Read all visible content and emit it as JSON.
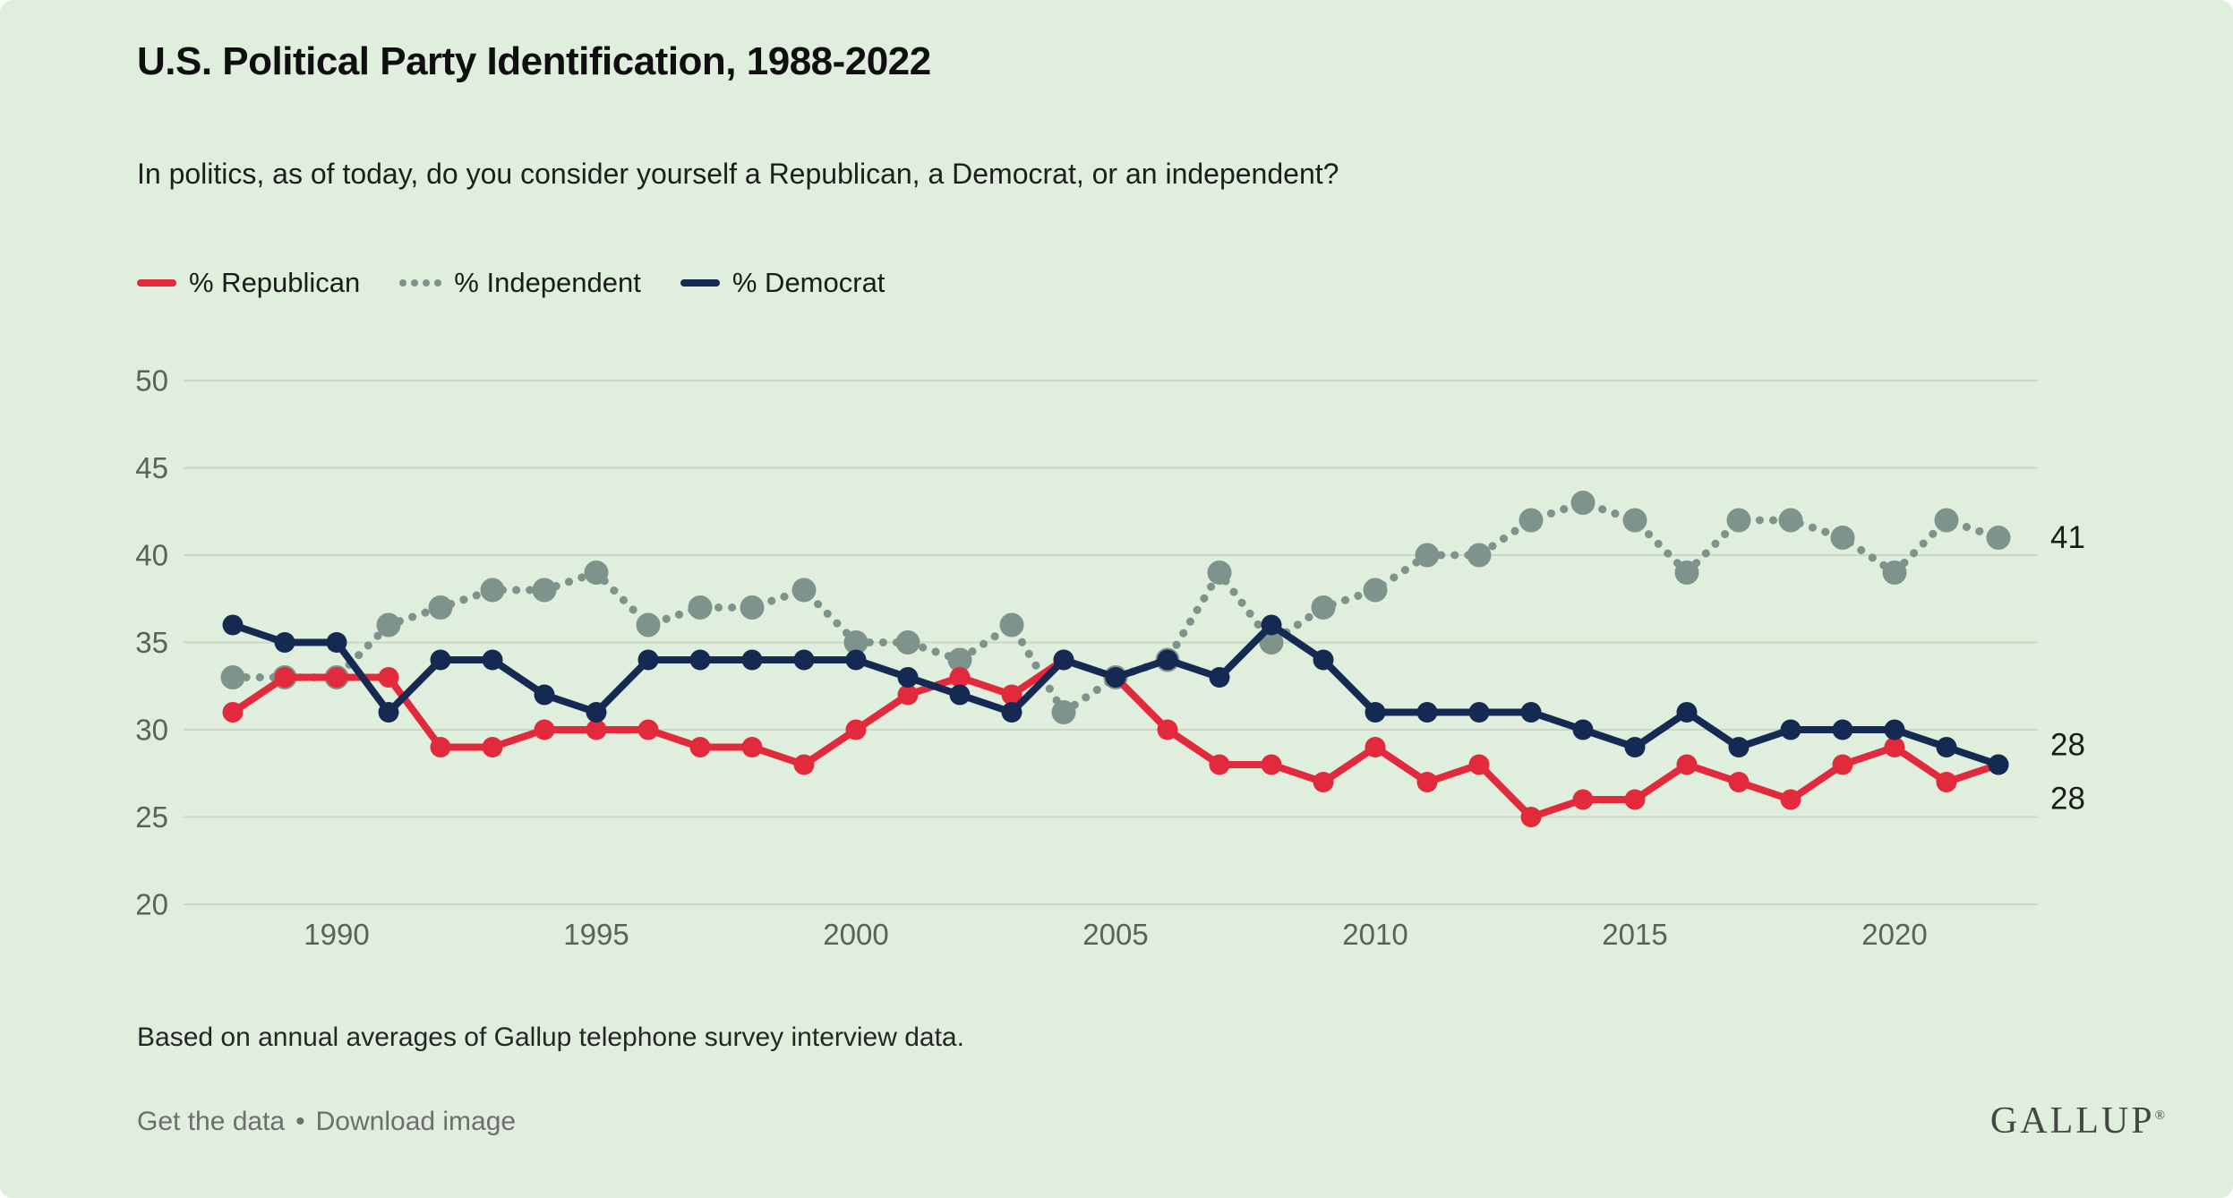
{
  "card": {
    "title": "U.S. Political Party Identification, 1988-2022",
    "subtitle": "In politics, as of today, do you consider yourself a Republican, a Democrat, or an independent?"
  },
  "legend": [
    {
      "label": "% Republican",
      "key": "republican",
      "style": "solid"
    },
    {
      "label": "% Independent",
      "key": "independent",
      "style": "dotted"
    },
    {
      "label": "% Democrat",
      "key": "democrat",
      "style": "solid"
    }
  ],
  "colors": {
    "republican": "#e3293c",
    "independent": "#7d938c",
    "democrat": "#152a52",
    "background": "#dfeedd",
    "grid": "#c9d7c4",
    "tick_text": "#5c615c",
    "end_label": "#1b1b1b"
  },
  "chart_data": {
    "type": "line",
    "title": "U.S. Political Party Identification, 1988-2022",
    "x": [
      1988,
      1989,
      1990,
      1991,
      1992,
      1993,
      1994,
      1995,
      1996,
      1997,
      1998,
      1999,
      2000,
      2001,
      2002,
      2003,
      2004,
      2005,
      2006,
      2007,
      2008,
      2009,
      2010,
      2011,
      2012,
      2013,
      2014,
      2015,
      2016,
      2017,
      2018,
      2019,
      2020,
      2021,
      2022
    ],
    "series": [
      {
        "name": "% Republican",
        "key": "republican",
        "style": "solid",
        "values": [
          31,
          33,
          33,
          33,
          29,
          29,
          30,
          30,
          30,
          29,
          29,
          28,
          30,
          32,
          33,
          32,
          34,
          33,
          30,
          28,
          28,
          27,
          29,
          27,
          28,
          25,
          26,
          26,
          28,
          27,
          26,
          28,
          29,
          27,
          28
        ]
      },
      {
        "name": "% Independent",
        "key": "independent",
        "style": "dotted",
        "values": [
          33,
          33,
          33,
          36,
          37,
          38,
          38,
          39,
          36,
          37,
          37,
          38,
          35,
          35,
          34,
          36,
          31,
          33,
          34,
          39,
          35,
          37,
          38,
          40,
          40,
          42,
          43,
          42,
          39,
          42,
          42,
          41,
          39,
          42,
          41
        ]
      },
      {
        "name": "% Democrat",
        "key": "democrat",
        "style": "solid",
        "values": [
          36,
          35,
          35,
          31,
          34,
          34,
          32,
          31,
          34,
          34,
          34,
          34,
          34,
          33,
          32,
          31,
          34,
          33,
          34,
          33,
          36,
          34,
          31,
          31,
          31,
          31,
          30,
          29,
          31,
          29,
          30,
          30,
          30,
          29,
          28
        ]
      }
    ],
    "ylim": [
      20,
      50
    ],
    "yticks": [
      50,
      45,
      40,
      35,
      30,
      25,
      20
    ],
    "xticks": [
      1990,
      1995,
      2000,
      2005,
      2010,
      2015,
      2020
    ],
    "grid": true,
    "legend_position": "top-left",
    "end_labels": [
      {
        "series": "independent",
        "text": "41",
        "dy": 0
      },
      {
        "series": "democrat",
        "text": "28",
        "dy": -22
      },
      {
        "series": "republican",
        "text": "28",
        "dy": 38
      }
    ]
  },
  "footnote": "Based on annual averages of Gallup telephone survey interview data.",
  "footer": {
    "get_data": "Get the data",
    "separator": "•",
    "download": "Download image"
  },
  "logo": {
    "text": "GALLUP",
    "registered": "®"
  }
}
